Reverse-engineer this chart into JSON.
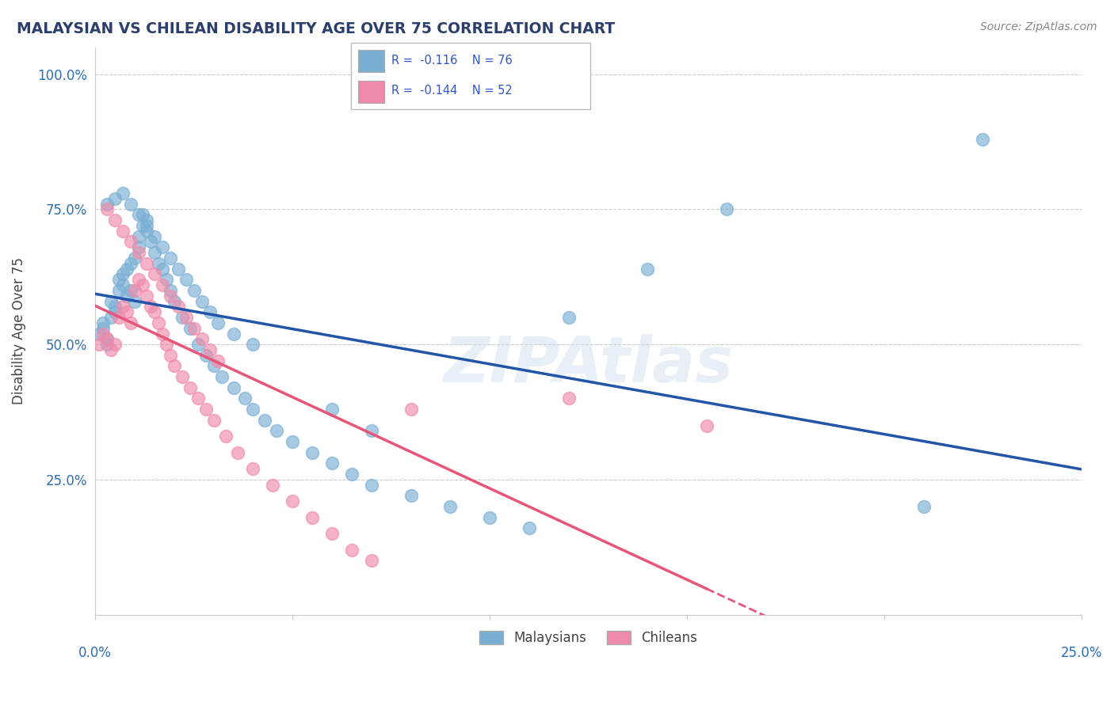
{
  "title": "MALAYSIAN VS CHILEAN DISABILITY AGE OVER 75 CORRELATION CHART",
  "source": "Source: ZipAtlas.com",
  "ylabel": "Disability Age Over 75",
  "yticks": [
    0.0,
    0.25,
    0.5,
    0.75,
    1.0
  ],
  "ytick_labels": [
    "",
    "25.0%",
    "50.0%",
    "75.0%",
    "100.0%"
  ],
  "xlim": [
    0.0,
    0.25
  ],
  "ylim": [
    0.0,
    1.05
  ],
  "malaysians_color": "#7aafd4",
  "chileans_color": "#f08aaa",
  "trendline_malaysians_color": "#2255aa",
  "trendline_chileans_color": "#e8557a",
  "watermark": "ZIPAtlas",
  "malaysians_x": [
    0.001,
    0.002,
    0.002,
    0.003,
    0.003,
    0.004,
    0.004,
    0.005,
    0.005,
    0.006,
    0.006,
    0.007,
    0.007,
    0.008,
    0.008,
    0.009,
    0.009,
    0.01,
    0.01,
    0.011,
    0.011,
    0.012,
    0.012,
    0.013,
    0.013,
    0.014,
    0.015,
    0.016,
    0.017,
    0.018,
    0.019,
    0.02,
    0.022,
    0.024,
    0.026,
    0.028,
    0.03,
    0.032,
    0.035,
    0.038,
    0.04,
    0.043,
    0.046,
    0.05,
    0.055,
    0.06,
    0.065,
    0.07,
    0.08,
    0.09,
    0.1,
    0.11,
    0.12,
    0.14,
    0.16,
    0.003,
    0.005,
    0.007,
    0.009,
    0.011,
    0.013,
    0.015,
    0.017,
    0.019,
    0.021,
    0.023,
    0.025,
    0.027,
    0.029,
    0.031,
    0.035,
    0.04,
    0.06,
    0.07,
    0.21,
    0.225
  ],
  "malaysians_y": [
    0.52,
    0.54,
    0.53,
    0.51,
    0.5,
    0.55,
    0.58,
    0.57,
    0.56,
    0.6,
    0.62,
    0.63,
    0.61,
    0.59,
    0.64,
    0.65,
    0.6,
    0.58,
    0.66,
    0.68,
    0.7,
    0.72,
    0.74,
    0.73,
    0.71,
    0.69,
    0.67,
    0.65,
    0.64,
    0.62,
    0.6,
    0.58,
    0.55,
    0.53,
    0.5,
    0.48,
    0.46,
    0.44,
    0.42,
    0.4,
    0.38,
    0.36,
    0.34,
    0.32,
    0.3,
    0.28,
    0.26,
    0.24,
    0.22,
    0.2,
    0.18,
    0.16,
    0.55,
    0.64,
    0.75,
    0.76,
    0.77,
    0.78,
    0.76,
    0.74,
    0.72,
    0.7,
    0.68,
    0.66,
    0.64,
    0.62,
    0.6,
    0.58,
    0.56,
    0.54,
    0.52,
    0.5,
    0.38,
    0.34,
    0.2,
    0.88
  ],
  "chileans_x": [
    0.001,
    0.002,
    0.003,
    0.004,
    0.005,
    0.006,
    0.007,
    0.008,
    0.009,
    0.01,
    0.011,
    0.012,
    0.013,
    0.014,
    0.015,
    0.016,
    0.017,
    0.018,
    0.019,
    0.02,
    0.022,
    0.024,
    0.026,
    0.028,
    0.03,
    0.033,
    0.036,
    0.04,
    0.045,
    0.05,
    0.055,
    0.06,
    0.065,
    0.07,
    0.08,
    0.003,
    0.005,
    0.007,
    0.009,
    0.011,
    0.013,
    0.015,
    0.017,
    0.019,
    0.021,
    0.023,
    0.025,
    0.027,
    0.029,
    0.031,
    0.12,
    0.155
  ],
  "chileans_y": [
    0.5,
    0.52,
    0.51,
    0.49,
    0.5,
    0.55,
    0.57,
    0.56,
    0.54,
    0.6,
    0.62,
    0.61,
    0.59,
    0.57,
    0.56,
    0.54,
    0.52,
    0.5,
    0.48,
    0.46,
    0.44,
    0.42,
    0.4,
    0.38,
    0.36,
    0.33,
    0.3,
    0.27,
    0.24,
    0.21,
    0.18,
    0.15,
    0.12,
    0.1,
    0.38,
    0.75,
    0.73,
    0.71,
    0.69,
    0.67,
    0.65,
    0.63,
    0.61,
    0.59,
    0.57,
    0.55,
    0.53,
    0.51,
    0.49,
    0.47,
    0.4,
    0.35
  ],
  "background_color": "#ffffff",
  "grid_color": "#cccccc",
  "title_color": "#2c3e6b",
  "axis_label_color": "#2c6eb5",
  "source_color": "#888888"
}
